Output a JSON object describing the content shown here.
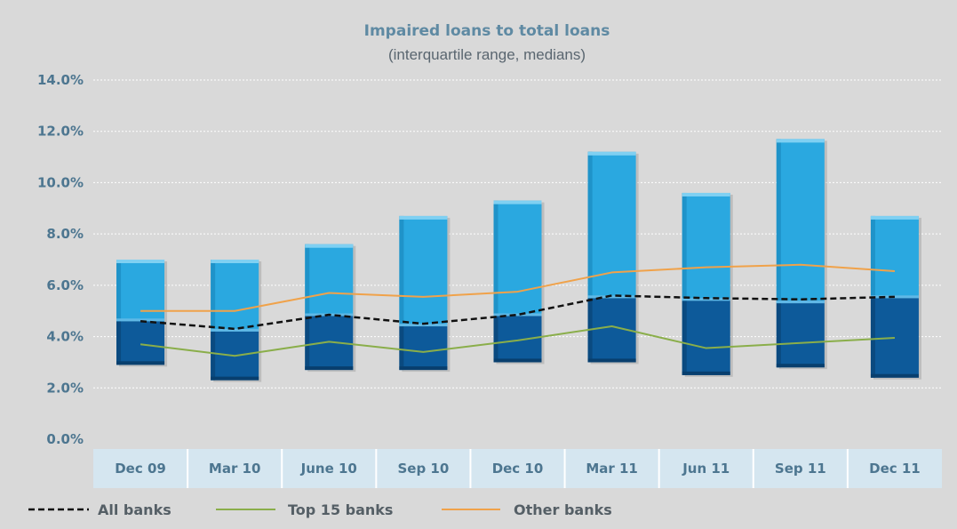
{
  "chart_data": {
    "type": "bar",
    "title": "Impaired loans to total loans",
    "subtitle": "(interquartile range, medians)",
    "xlabel": "",
    "ylabel": "",
    "ylim": [
      0,
      14
    ],
    "ytick_labels": [
      "0.0%",
      "2.0%",
      "4.0%",
      "6.0%",
      "8.0%",
      "10.0%",
      "12.0%",
      "14.0%"
    ],
    "grid": true,
    "categories": [
      "Dec 09",
      "Mar 10",
      "June 10",
      "Sep 10",
      "Dec 10",
      "Mar 11",
      "Jun 11",
      "Sep 11",
      "Dec 11"
    ],
    "bars": {
      "description": "interquartile range (lower quartile, median, upper quartile)",
      "q1": [
        2.9,
        2.3,
        2.7,
        2.7,
        3.0,
        3.0,
        2.5,
        2.8,
        2.4
      ],
      "median": [
        4.6,
        4.2,
        4.8,
        4.4,
        4.8,
        5.5,
        5.4,
        5.3,
        5.5
      ],
      "q3": [
        7.0,
        7.0,
        7.6,
        8.7,
        9.3,
        11.2,
        9.6,
        11.7,
        8.7
      ]
    },
    "series": [
      {
        "name": "All banks",
        "style": "dashed",
        "color": "#111111",
        "values": [
          4.6,
          4.3,
          4.85,
          4.5,
          4.85,
          5.6,
          5.5,
          5.45,
          5.55
        ]
      },
      {
        "name": "Top 15 banks",
        "style": "solid",
        "color": "#8aae4a",
        "values": [
          3.7,
          3.25,
          3.8,
          3.4,
          3.85,
          4.4,
          3.55,
          3.75,
          3.95
        ]
      },
      {
        "name": "Other banks",
        "style": "solid",
        "color": "#f0a24a",
        "values": [
          5.0,
          5.0,
          5.7,
          5.55,
          5.75,
          6.5,
          6.7,
          6.8,
          6.55
        ]
      }
    ],
    "legend_position": "bottom",
    "colors": {
      "background": "#d9d9d9",
      "upper_bar": "#2aa8e0",
      "lower_bar": "#0d5a9a",
      "grid": "#ffffff",
      "axis_band": "#d5e6f0"
    }
  }
}
